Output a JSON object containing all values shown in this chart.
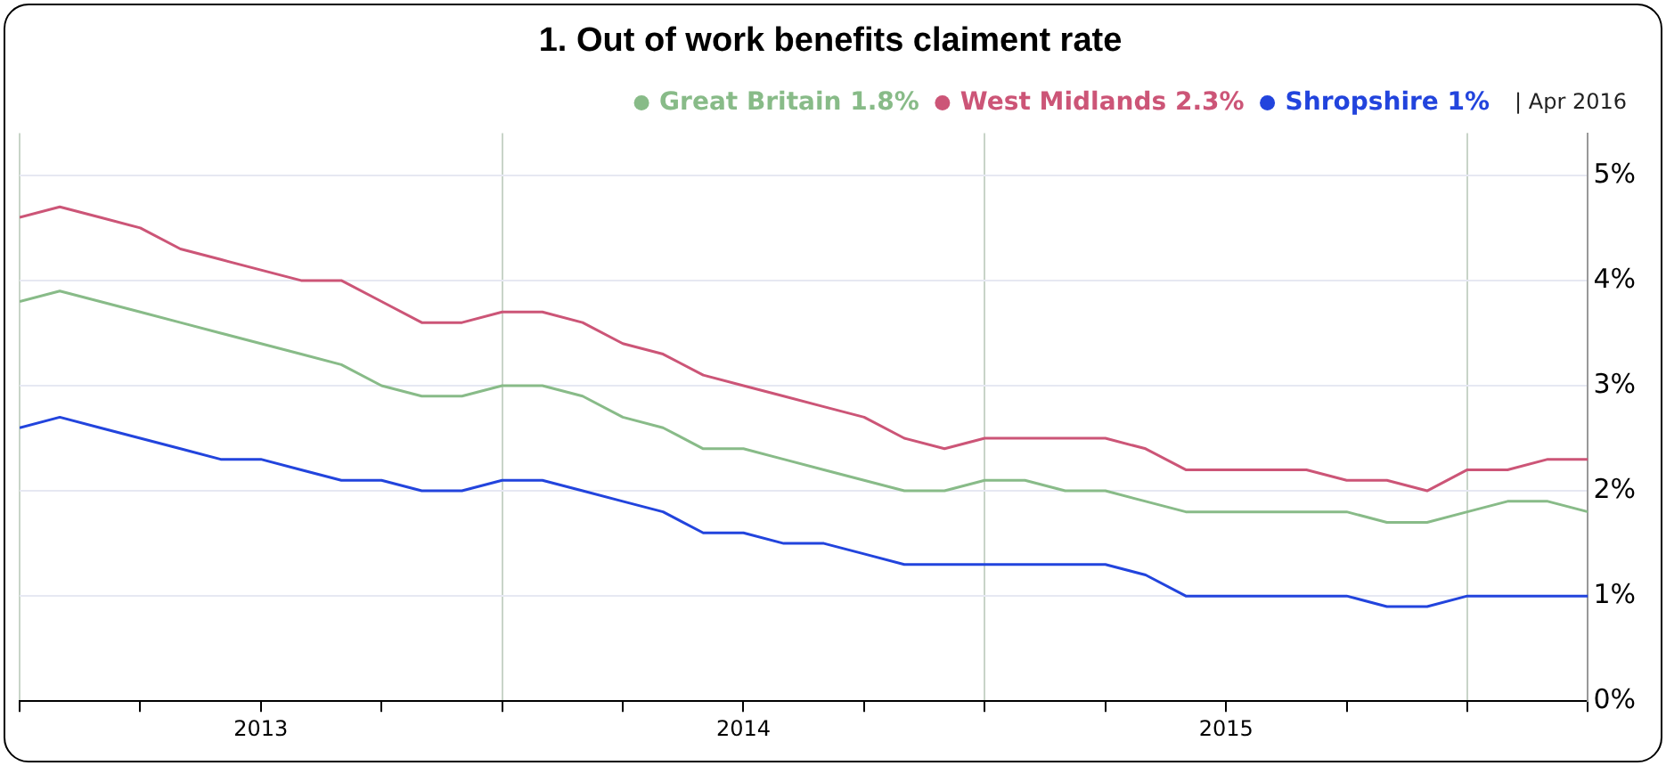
{
  "chart_data": {
    "type": "line",
    "title": "1. Out of work benefits claiment rate",
    "x": [
      "2013-01",
      "2013-02",
      "2013-03",
      "2013-04",
      "2013-05",
      "2013-06",
      "2013-07",
      "2013-08",
      "2013-09",
      "2013-10",
      "2013-11",
      "2013-12",
      "2014-01",
      "2014-02",
      "2014-03",
      "2014-04",
      "2014-05",
      "2014-06",
      "2014-07",
      "2014-08",
      "2014-09",
      "2014-10",
      "2014-11",
      "2014-12",
      "2015-01",
      "2015-02",
      "2015-03",
      "2015-04",
      "2015-05",
      "2015-06",
      "2015-07",
      "2015-08",
      "2015-09",
      "2015-10",
      "2015-11",
      "2015-12",
      "2016-01",
      "2016-02",
      "2016-03",
      "2016-04"
    ],
    "series": [
      {
        "name": "Great Britain 1.8%",
        "color": "#88bb88",
        "values": [
          3.8,
          3.9,
          3.8,
          3.7,
          3.6,
          3.5,
          3.4,
          3.3,
          3.2,
          3.0,
          2.9,
          2.9,
          3.0,
          3.0,
          2.9,
          2.7,
          2.6,
          2.4,
          2.4,
          2.3,
          2.2,
          2.1,
          2.0,
          2.0,
          2.1,
          2.1,
          2.0,
          2.0,
          1.9,
          1.8,
          1.8,
          1.8,
          1.8,
          1.8,
          1.7,
          1.7,
          1.8,
          1.9,
          1.9,
          1.8
        ]
      },
      {
        "name": "West Midlands 2.3%",
        "color": "#cc5577",
        "values": [
          4.6,
          4.7,
          4.6,
          4.5,
          4.3,
          4.2,
          4.1,
          4.0,
          4.0,
          3.8,
          3.6,
          3.6,
          3.7,
          3.7,
          3.6,
          3.4,
          3.3,
          3.1,
          3.0,
          2.9,
          2.8,
          2.7,
          2.5,
          2.4,
          2.5,
          2.5,
          2.5,
          2.5,
          2.4,
          2.2,
          2.2,
          2.2,
          2.2,
          2.1,
          2.1,
          2.0,
          2.2,
          2.2,
          2.3,
          2.3
        ]
      },
      {
        "name": "Shropshire 1%",
        "color": "#2244dd",
        "values": [
          2.6,
          2.7,
          2.6,
          2.5,
          2.4,
          2.3,
          2.3,
          2.2,
          2.1,
          2.1,
          2.0,
          2.0,
          2.1,
          2.1,
          2.0,
          1.9,
          1.8,
          1.6,
          1.6,
          1.5,
          1.5,
          1.4,
          1.3,
          1.3,
          1.3,
          1.3,
          1.3,
          1.3,
          1.2,
          1.0,
          1.0,
          1.0,
          1.0,
          1.0,
          0.9,
          0.9,
          1.0,
          1.0,
          1.0,
          1.0
        ]
      }
    ],
    "xlim": [
      "2013-01",
      "2016-04"
    ],
    "xticks": [
      {
        "value": "2013-01",
        "label": null
      },
      {
        "value": "2013-04",
        "label": null
      },
      {
        "value": "2013-07",
        "label": "2013"
      },
      {
        "value": "2013-10",
        "label": null
      },
      {
        "value": "2014-01",
        "label": null
      },
      {
        "value": "2014-04",
        "label": null
      },
      {
        "value": "2014-07",
        "label": "2014"
      },
      {
        "value": "2014-10",
        "label": null
      },
      {
        "value": "2015-01",
        "label": null
      },
      {
        "value": "2015-04",
        "label": null
      },
      {
        "value": "2015-07",
        "label": "2015"
      },
      {
        "value": "2015-10",
        "label": null
      },
      {
        "value": "2016-01",
        "label": null
      },
      {
        "value": "2016-04",
        "label": null
      }
    ],
    "ylim": [
      0,
      5.4
    ],
    "yticks": [
      {
        "value": 0,
        "label": "0%"
      },
      {
        "value": 1,
        "label": "1%"
      },
      {
        "value": 2,
        "label": "2%"
      },
      {
        "value": 3,
        "label": "3%"
      },
      {
        "value": 4,
        "label": "4%"
      },
      {
        "value": 5,
        "label": "5%"
      }
    ],
    "annotations": [
      "| Apr 2016"
    ],
    "grid": true,
    "legend": "top right",
    "marker": "none",
    "line_style": "solid"
  }
}
